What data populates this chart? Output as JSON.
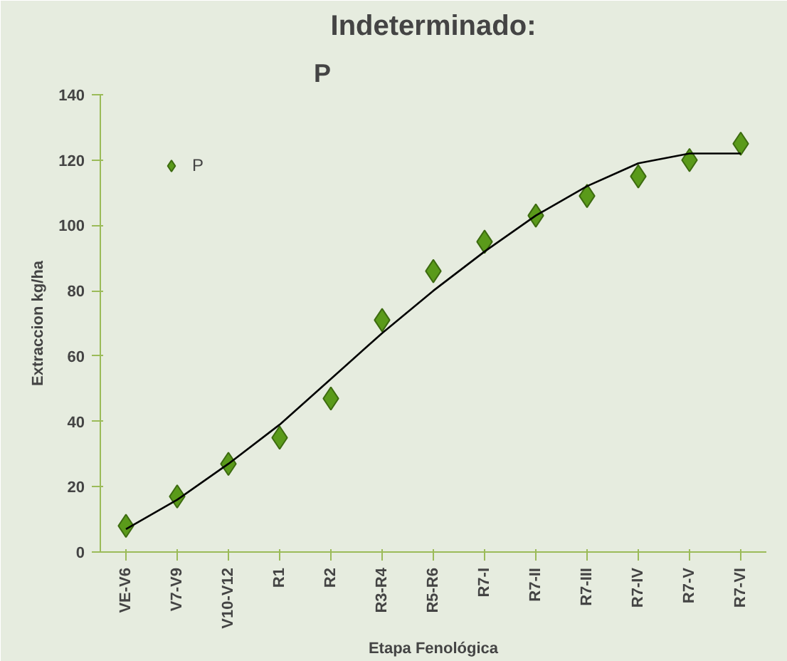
{
  "chart_data": {
    "type": "scatter",
    "title": "Indeterminado:",
    "subtitle": "P",
    "xlabel": "Etapa Fenológica",
    "ylabel": "Extraccion kg/ha",
    "categories": [
      "VE-V6",
      "V7-V9",
      "V10-V12",
      "R1",
      "R2",
      "R3-R4",
      "R5-R6",
      "R7-I",
      "R7-II",
      "R7-III",
      "R7-IV",
      "R7-V",
      "R7-VI"
    ],
    "series": [
      {
        "name": "P",
        "color": "#5a9a1a",
        "marker": "diamond",
        "values": [
          8,
          17,
          27,
          35,
          47,
          71,
          86,
          95,
          103,
          109,
          115,
          120,
          125
        ]
      },
      {
        "type": "line",
        "color": "#000000",
        "marker": "none",
        "x": [
          "VE-V6",
          "V7-V9",
          "V10-V12",
          "R1",
          "R2",
          "R3-R4",
          "R5-R6",
          "R7-I",
          "R7-II",
          "R7-III",
          "R7-IV",
          "R7-V",
          "R7-VI"
        ],
        "values": [
          7,
          16,
          27,
          39,
          53,
          67,
          80,
          92,
          103,
          112,
          119,
          122,
          122
        ]
      }
    ],
    "ylim": [
      0,
      140
    ],
    "yticks": [
      0,
      20,
      40,
      60,
      80,
      100,
      120,
      140
    ],
    "grid": false,
    "legend": "top left"
  }
}
